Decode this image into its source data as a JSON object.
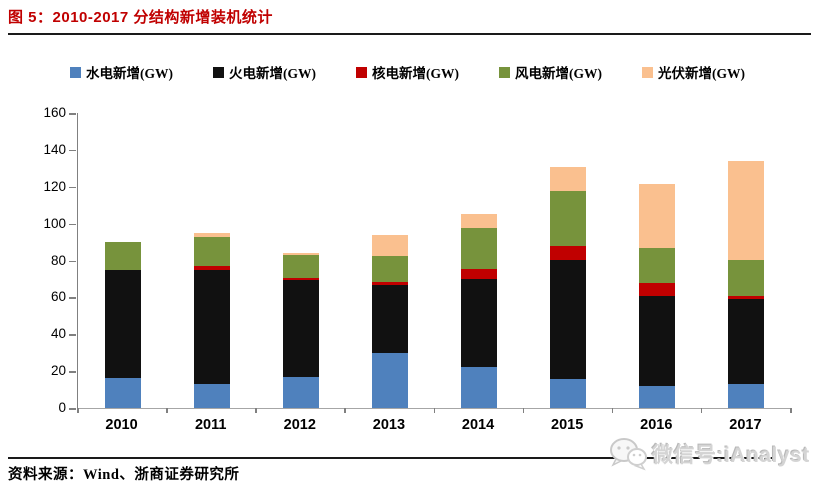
{
  "header": {
    "title": "图 5：2010-2017 分结构新增装机统计"
  },
  "footer": {
    "source_label": "资料来源：Wind、浙商证券研究所"
  },
  "watermark": {
    "icon": "wechat-icon",
    "text": "微信号:iAnalyst"
  },
  "colors": {
    "title_red": "#C00000",
    "axis_gray": "#808080",
    "watermark_gray": "#d4d4d4"
  },
  "chart_data": {
    "type": "bar",
    "stacked": true,
    "categories": [
      "2010",
      "2011",
      "2012",
      "2013",
      "2014",
      "2015",
      "2016",
      "2017"
    ],
    "series": [
      {
        "name": "水电新增(GW)",
        "color": "#4F81BD",
        "values": [
          16.5,
          13,
          17,
          30,
          22,
          16,
          12,
          13
        ]
      },
      {
        "name": "火电新增(GW)",
        "color": "#111111",
        "values": [
          58.5,
          62,
          52.5,
          36.5,
          48,
          64.5,
          48.5,
          46
        ]
      },
      {
        "name": "核电新增(GW)",
        "color": "#C00000",
        "values": [
          0,
          2,
          1,
          2,
          5.5,
          7.5,
          7.5,
          2
        ]
      },
      {
        "name": "风电新增(GW)",
        "color": "#77933C",
        "values": [
          15,
          15.5,
          12.5,
          14,
          22,
          29.5,
          19,
          19.5
        ]
      },
      {
        "name": "光伏新增(GW)",
        "color": "#FAC08F",
        "values": [
          0,
          2.5,
          1,
          11.5,
          7.5,
          13,
          34.5,
          53.5
        ]
      }
    ],
    "totals": [
      90,
      95,
      84,
      94,
      105,
      130.5,
      121.5,
      134
    ],
    "ylim": [
      0,
      160
    ],
    "yticks": [
      0,
      20,
      40,
      60,
      80,
      100,
      120,
      140,
      160
    ],
    "grid": false,
    "legend_position": "top",
    "xlabel": "",
    "ylabel": ""
  }
}
